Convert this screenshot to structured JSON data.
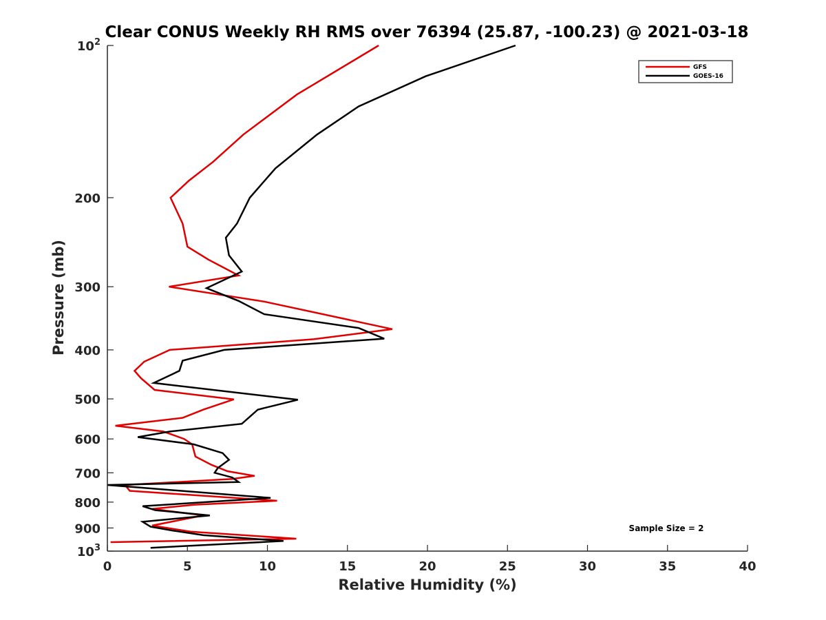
{
  "chart_data": {
    "type": "line",
    "title": "Clear CONUS Weekly RH RMS over 76394 (25.87, -100.23) @ 2021-03-18",
    "xlabel": "Relative Humidity (%)",
    "ylabel": "Pressure (mb)",
    "xlim": [
      0,
      40
    ],
    "ylim": [
      100,
      1000
    ],
    "y_scale": "log",
    "y_reversed": true,
    "grid": false,
    "legend_position": "top-right",
    "x_ticks": [
      "0",
      "5",
      "10",
      "15",
      "20",
      "25",
      "30",
      "35",
      "40"
    ],
    "y_ticks": [
      {
        "value": 100,
        "base": "10",
        "exp": "2"
      },
      {
        "value": 200,
        "label": "200"
      },
      {
        "value": 300,
        "label": "300"
      },
      {
        "value": 400,
        "label": "400"
      },
      {
        "value": 500,
        "label": "500"
      },
      {
        "value": 600,
        "label": "600"
      },
      {
        "value": 700,
        "label": "700"
      },
      {
        "value": 800,
        "label": "800"
      },
      {
        "value": 900,
        "label": "900"
      },
      {
        "value": 1000,
        "base": "10",
        "exp": "3"
      }
    ],
    "annotation": "Sample Size = 2",
    "series": [
      {
        "name": "GFS",
        "color": "#e00000",
        "points": [
          [
            16.95,
            100
          ],
          [
            11.85,
            125
          ],
          [
            8.5,
            150
          ],
          [
            6.6,
            170
          ],
          [
            5.1,
            185
          ],
          [
            3.95,
            200
          ],
          [
            4.7,
            225
          ],
          [
            5.0,
            250
          ],
          [
            6.3,
            265
          ],
          [
            8.2,
            285
          ],
          [
            3.85,
            300
          ],
          [
            9.8,
            321
          ],
          [
            17.8,
            364
          ],
          [
            12.9,
            381
          ],
          [
            3.9,
            400
          ],
          [
            2.3,
            422
          ],
          [
            1.7,
            440
          ],
          [
            2.1,
            455
          ],
          [
            2.95,
            480
          ],
          [
            7.9,
            501
          ],
          [
            6.0,
            525
          ],
          [
            4.7,
            545
          ],
          [
            0.5,
            565
          ],
          [
            3.5,
            580
          ],
          [
            4.8,
            600
          ],
          [
            5.3,
            615
          ],
          [
            5.5,
            650
          ],
          [
            6.5,
            675
          ],
          [
            7.5,
            695
          ],
          [
            9.2,
            710
          ],
          [
            7.8,
            720
          ],
          [
            1.1,
            740
          ],
          [
            1.4,
            760
          ],
          [
            10.6,
            795
          ],
          [
            5.4,
            810
          ],
          [
            2.8,
            825
          ],
          [
            6.0,
            850
          ],
          [
            2.8,
            890
          ],
          [
            5.2,
            915
          ],
          [
            11.8,
            945
          ],
          [
            0.2,
            960
          ]
        ]
      },
      {
        "name": "GOES-16",
        "color": "#000000",
        "points": [
          [
            25.5,
            100
          ],
          [
            19.9,
            115
          ],
          [
            15.7,
            132
          ],
          [
            13.1,
            150
          ],
          [
            10.5,
            175
          ],
          [
            8.9,
            200
          ],
          [
            8.1,
            225
          ],
          [
            7.4,
            240
          ],
          [
            7.6,
            260
          ],
          [
            8.4,
            280
          ],
          [
            6.2,
            302
          ],
          [
            8.2,
            320
          ],
          [
            9.8,
            340
          ],
          [
            15.7,
            362
          ],
          [
            17.3,
            380
          ],
          [
            7.3,
            400
          ],
          [
            4.7,
            420
          ],
          [
            4.5,
            440
          ],
          [
            2.9,
            465
          ],
          [
            11.9,
            502
          ],
          [
            9.4,
            525
          ],
          [
            8.4,
            560
          ],
          [
            3.9,
            580
          ],
          [
            1.9,
            595
          ],
          [
            5.4,
            615
          ],
          [
            7.2,
            640
          ],
          [
            7.6,
            660
          ],
          [
            6.9,
            685
          ],
          [
            6.7,
            700
          ],
          [
            7.8,
            715
          ],
          [
            8.2,
            730
          ],
          [
            0.0,
            740
          ],
          [
            10.2,
            785
          ],
          [
            2.2,
            815
          ],
          [
            3.0,
            830
          ],
          [
            6.4,
            850
          ],
          [
            2.2,
            875
          ],
          [
            2.7,
            895
          ],
          [
            4.0,
            910
          ],
          [
            6.0,
            930
          ],
          [
            11.0,
            955
          ],
          [
            2.7,
            985
          ]
        ]
      }
    ]
  }
}
